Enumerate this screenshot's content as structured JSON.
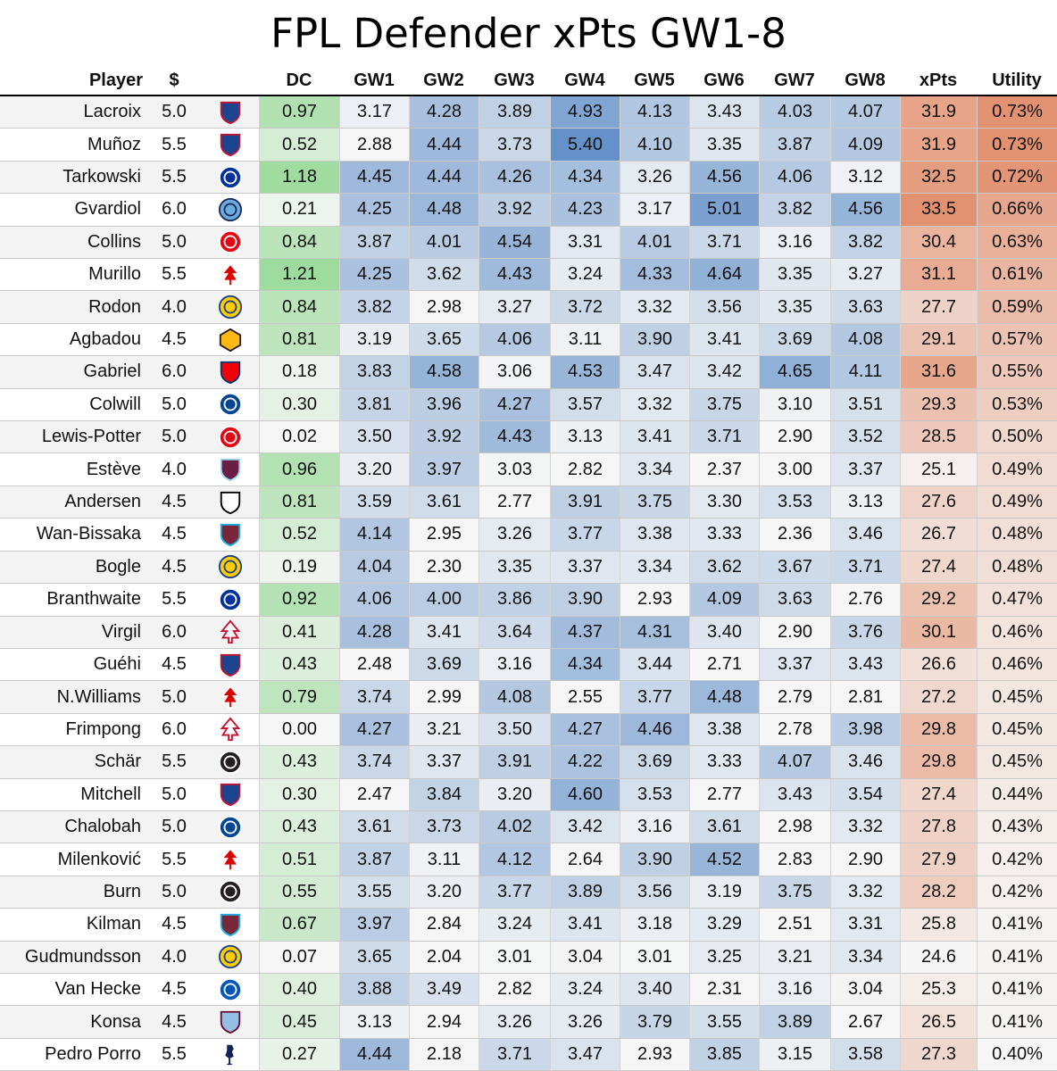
{
  "title": "FPL Defender xPts GW1-8",
  "headers": {
    "player": "Player",
    "price": "$",
    "dc": "DC",
    "gw": [
      "GW1",
      "GW2",
      "GW3",
      "GW4",
      "GW5",
      "GW6",
      "GW7",
      "GW8"
    ],
    "xpts": "xPts",
    "utility": "Utility"
  },
  "colors": {
    "dc_green": "#8fd68f",
    "gw_blue": "#4a7fc1",
    "xpts_red": "#e0805a",
    "neutral": "#f4f4f4"
  },
  "players": [
    {
      "name": "Lacroix",
      "price": "5.0",
      "team": "crystal-palace-crest-icon",
      "dc": "0.97",
      "gw": [
        "3.17",
        "4.28",
        "3.89",
        "4.93",
        "4.13",
        "3.43",
        "4.03",
        "4.07"
      ],
      "xpts": "31.9",
      "utility": "0.73%"
    },
    {
      "name": "Muñoz",
      "price": "5.5",
      "team": "crystal-palace-crest-icon",
      "dc": "0.52",
      "gw": [
        "2.88",
        "4.44",
        "3.73",
        "5.40",
        "4.10",
        "3.35",
        "3.87",
        "4.09"
      ],
      "xpts": "31.9",
      "utility": "0.73%"
    },
    {
      "name": "Tarkowski",
      "price": "5.5",
      "team": "everton-crest-icon",
      "dc": "1.18",
      "gw": [
        "4.45",
        "4.44",
        "4.26",
        "4.34",
        "3.26",
        "4.56",
        "4.06",
        "3.12"
      ],
      "xpts": "32.5",
      "utility": "0.72%"
    },
    {
      "name": "Gvardiol",
      "price": "6.0",
      "team": "man-city-crest-icon",
      "dc": "0.21",
      "gw": [
        "4.25",
        "4.48",
        "3.92",
        "4.23",
        "3.17",
        "5.01",
        "3.82",
        "4.56"
      ],
      "xpts": "33.5",
      "utility": "0.66%"
    },
    {
      "name": "Collins",
      "price": "5.0",
      "team": "brentford-crest-icon",
      "dc": "0.84",
      "gw": [
        "3.87",
        "4.01",
        "4.54",
        "3.31",
        "4.01",
        "3.71",
        "3.16",
        "3.82"
      ],
      "xpts": "30.4",
      "utility": "0.63%"
    },
    {
      "name": "Murillo",
      "price": "5.5",
      "team": "nottm-forest-crest-icon",
      "dc": "1.21",
      "gw": [
        "4.25",
        "3.62",
        "4.43",
        "3.24",
        "4.33",
        "4.64",
        "3.35",
        "3.27"
      ],
      "xpts": "31.1",
      "utility": "0.61%"
    },
    {
      "name": "Rodon",
      "price": "4.0",
      "team": "leeds-crest-icon",
      "dc": "0.84",
      "gw": [
        "3.82",
        "2.98",
        "3.27",
        "3.72",
        "3.32",
        "3.56",
        "3.35",
        "3.63"
      ],
      "xpts": "27.7",
      "utility": "0.59%"
    },
    {
      "name": "Agbadou",
      "price": "4.5",
      "team": "wolves-crest-icon",
      "dc": "0.81",
      "gw": [
        "3.19",
        "3.65",
        "4.06",
        "3.11",
        "3.90",
        "3.41",
        "3.69",
        "4.08"
      ],
      "xpts": "29.1",
      "utility": "0.57%"
    },
    {
      "name": "Gabriel",
      "price": "6.0",
      "team": "arsenal-crest-icon",
      "dc": "0.18",
      "gw": [
        "3.83",
        "4.58",
        "3.06",
        "4.53",
        "3.47",
        "3.42",
        "4.65",
        "4.11"
      ],
      "xpts": "31.6",
      "utility": "0.55%"
    },
    {
      "name": "Colwill",
      "price": "5.0",
      "team": "chelsea-crest-icon",
      "dc": "0.30",
      "gw": [
        "3.81",
        "3.96",
        "4.27",
        "3.57",
        "3.32",
        "3.75",
        "3.10",
        "3.51"
      ],
      "xpts": "29.3",
      "utility": "0.53%"
    },
    {
      "name": "Lewis-Potter",
      "price": "5.0",
      "team": "brentford-crest-icon",
      "dc": "0.02",
      "gw": [
        "3.50",
        "3.92",
        "4.43",
        "3.13",
        "3.41",
        "3.71",
        "2.90",
        "3.52"
      ],
      "xpts": "28.5",
      "utility": "0.50%"
    },
    {
      "name": "Estève",
      "price": "4.0",
      "team": "burnley-crest-icon",
      "dc": "0.96",
      "gw": [
        "3.20",
        "3.97",
        "3.03",
        "2.82",
        "3.34",
        "2.37",
        "3.00",
        "3.37"
      ],
      "xpts": "25.1",
      "utility": "0.49%"
    },
    {
      "name": "Andersen",
      "price": "4.5",
      "team": "fulham-crest-icon",
      "dc": "0.81",
      "gw": [
        "3.59",
        "3.61",
        "2.77",
        "3.91",
        "3.75",
        "3.30",
        "3.53",
        "3.13"
      ],
      "xpts": "27.6",
      "utility": "0.49%"
    },
    {
      "name": "Wan-Bissaka",
      "price": "4.5",
      "team": "west-ham-crest-icon",
      "dc": "0.52",
      "gw": [
        "4.14",
        "2.95",
        "3.26",
        "3.77",
        "3.38",
        "3.33",
        "2.36",
        "3.46"
      ],
      "xpts": "26.7",
      "utility": "0.48%"
    },
    {
      "name": "Bogle",
      "price": "4.5",
      "team": "leeds-crest-icon",
      "dc": "0.19",
      "gw": [
        "4.04",
        "2.30",
        "3.35",
        "3.37",
        "3.34",
        "3.62",
        "3.67",
        "3.71"
      ],
      "xpts": "27.4",
      "utility": "0.48%"
    },
    {
      "name": "Branthwaite",
      "price": "5.5",
      "team": "everton-crest-icon",
      "dc": "0.92",
      "gw": [
        "4.06",
        "4.00",
        "3.86",
        "3.90",
        "2.93",
        "4.09",
        "3.63",
        "2.76"
      ],
      "xpts": "29.2",
      "utility": "0.47%"
    },
    {
      "name": "Virgil",
      "price": "6.0",
      "team": "liverpool-crest-icon",
      "dc": "0.41",
      "gw": [
        "4.28",
        "3.41",
        "3.64",
        "4.37",
        "4.31",
        "3.40",
        "2.90",
        "3.76"
      ],
      "xpts": "30.1",
      "utility": "0.46%"
    },
    {
      "name": "Guéhi",
      "price": "4.5",
      "team": "crystal-palace-crest-icon",
      "dc": "0.43",
      "gw": [
        "2.48",
        "3.69",
        "3.16",
        "4.34",
        "3.44",
        "2.71",
        "3.37",
        "3.43"
      ],
      "xpts": "26.6",
      "utility": "0.46%"
    },
    {
      "name": "N.Williams",
      "price": "5.0",
      "team": "nottm-forest-crest-icon",
      "dc": "0.79",
      "gw": [
        "3.74",
        "2.99",
        "4.08",
        "2.55",
        "3.77",
        "4.48",
        "2.79",
        "2.81"
      ],
      "xpts": "27.2",
      "utility": "0.45%"
    },
    {
      "name": "Frimpong",
      "price": "6.0",
      "team": "liverpool-crest-icon",
      "dc": "0.00",
      "gw": [
        "4.27",
        "3.21",
        "3.50",
        "4.27",
        "4.46",
        "3.38",
        "2.78",
        "3.98"
      ],
      "xpts": "29.8",
      "utility": "0.45%"
    },
    {
      "name": "Schär",
      "price": "5.5",
      "team": "newcastle-crest-icon",
      "dc": "0.43",
      "gw": [
        "3.74",
        "3.37",
        "3.91",
        "4.22",
        "3.69",
        "3.33",
        "4.07",
        "3.46"
      ],
      "xpts": "29.8",
      "utility": "0.45%"
    },
    {
      "name": "Mitchell",
      "price": "5.0",
      "team": "crystal-palace-crest-icon",
      "dc": "0.30",
      "gw": [
        "2.47",
        "3.84",
        "3.20",
        "4.60",
        "3.53",
        "2.77",
        "3.43",
        "3.54"
      ],
      "xpts": "27.4",
      "utility": "0.44%"
    },
    {
      "name": "Chalobah",
      "price": "5.0",
      "team": "chelsea-crest-icon",
      "dc": "0.43",
      "gw": [
        "3.61",
        "3.73",
        "4.02",
        "3.42",
        "3.16",
        "3.61",
        "2.98",
        "3.32"
      ],
      "xpts": "27.8",
      "utility": "0.43%"
    },
    {
      "name": "Milenković",
      "price": "5.5",
      "team": "nottm-forest-crest-icon",
      "dc": "0.51",
      "gw": [
        "3.87",
        "3.11",
        "4.12",
        "2.64",
        "3.90",
        "4.52",
        "2.83",
        "2.90"
      ],
      "xpts": "27.9",
      "utility": "0.42%"
    },
    {
      "name": "Burn",
      "price": "5.0",
      "team": "newcastle-crest-icon",
      "dc": "0.55",
      "gw": [
        "3.55",
        "3.20",
        "3.77",
        "3.89",
        "3.56",
        "3.19",
        "3.75",
        "3.32"
      ],
      "xpts": "28.2",
      "utility": "0.42%"
    },
    {
      "name": "Kilman",
      "price": "4.5",
      "team": "west-ham-crest-icon",
      "dc": "0.67",
      "gw": [
        "3.97",
        "2.84",
        "3.24",
        "3.41",
        "3.18",
        "3.29",
        "2.51",
        "3.31"
      ],
      "xpts": "25.8",
      "utility": "0.41%"
    },
    {
      "name": "Gudmundsson",
      "price": "4.0",
      "team": "leeds-crest-icon",
      "dc": "0.07",
      "gw": [
        "3.65",
        "2.04",
        "3.01",
        "3.04",
        "3.01",
        "3.25",
        "3.21",
        "3.34"
      ],
      "xpts": "24.6",
      "utility": "0.41%"
    },
    {
      "name": "Van Hecke",
      "price": "4.5",
      "team": "brighton-crest-icon",
      "dc": "0.40",
      "gw": [
        "3.88",
        "3.49",
        "2.82",
        "3.24",
        "3.40",
        "2.31",
        "3.16",
        "3.04"
      ],
      "xpts": "25.3",
      "utility": "0.41%"
    },
    {
      "name": "Konsa",
      "price": "4.5",
      "team": "aston-villa-crest-icon",
      "dc": "0.45",
      "gw": [
        "3.13",
        "2.94",
        "3.26",
        "3.26",
        "3.79",
        "3.55",
        "3.89",
        "2.67"
      ],
      "xpts": "26.5",
      "utility": "0.41%"
    },
    {
      "name": "Pedro Porro",
      "price": "5.5",
      "team": "tottenham-crest-icon",
      "dc": "0.27",
      "gw": [
        "4.44",
        "2.18",
        "3.71",
        "3.47",
        "2.93",
        "3.85",
        "3.15",
        "3.58"
      ],
      "xpts": "27.3",
      "utility": "0.40%"
    }
  ]
}
